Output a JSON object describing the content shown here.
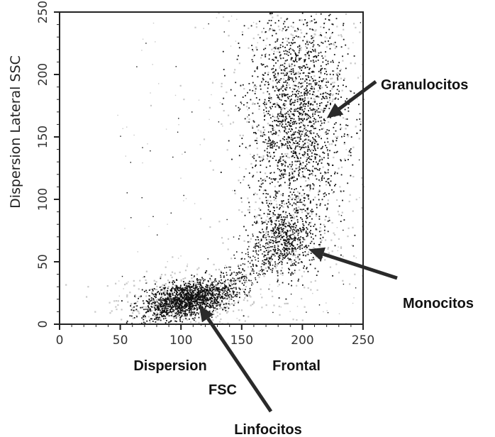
{
  "chart_data": {
    "type": "scatter",
    "title": "",
    "xlabel_parts": [
      "Dispersion",
      "Frontal",
      "FSC"
    ],
    "ylabel": "Dispersion Lateral SSC",
    "xlim": [
      0,
      250
    ],
    "ylim": [
      0,
      250
    ],
    "x_ticks": [
      "0",
      "50",
      "100",
      "150",
      "200",
      "250"
    ],
    "y_ticks": [
      "0",
      "50",
      "100",
      "150",
      "200",
      "250"
    ],
    "grid": false,
    "colors": {
      "dots": "#111111",
      "haze": "#c8c8c8",
      "axis": "#222222",
      "arrow": "#2a2a2a"
    },
    "populations": [
      {
        "name": "Linfocitos",
        "center_x": 105,
        "center_y": 20,
        "spread_x": 18,
        "spread_y": 7,
        "approx_events": 1400
      },
      {
        "name": "Monocitos",
        "center_x": 185,
        "center_y": 68,
        "spread_x": 14,
        "spread_y": 14,
        "approx_events": 500
      },
      {
        "name": "Granulocitos",
        "center_x": 195,
        "center_y": 165,
        "spread_x": 20,
        "spread_y": 45,
        "approx_events": 1700
      }
    ],
    "annotations": [
      {
        "text": "Granulocitos",
        "arrow_to": [
          220,
          165
        ]
      },
      {
        "text": "Monocitos",
        "arrow_to": [
          205,
          60
        ]
      },
      {
        "text": "Linfocitos",
        "arrow_to": [
          115,
          15
        ]
      }
    ]
  }
}
